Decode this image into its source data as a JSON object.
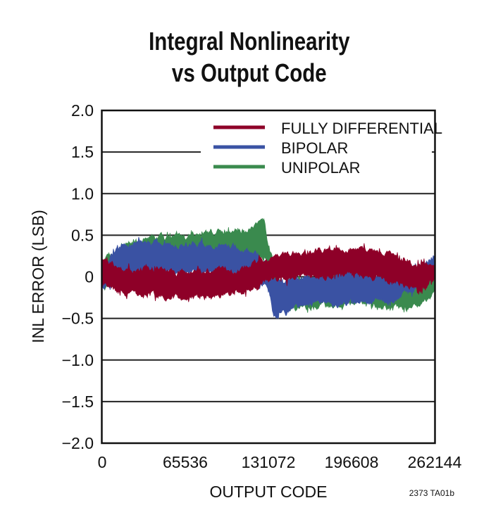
{
  "chart_data": {
    "type": "line",
    "title": [
      "Integral Nonlinearity",
      "vs Output Code"
    ],
    "xlabel": "OUTPUT CODE",
    "ylabel": "INL ERROR (LSB)",
    "xlim": [
      0,
      262144
    ],
    "ylim": [
      -2.0,
      2.0
    ],
    "xticks": [
      "0",
      "65536",
      "131072",
      "196608",
      "262144"
    ],
    "xtick_values": [
      0,
      65536,
      131072,
      196608,
      262144
    ],
    "yticks": [
      "2.0",
      "1.5",
      "1.0",
      "0.5",
      "0",
      "−0.5",
      "−1.0",
      "−1.5",
      "−2.0"
    ],
    "ytick_values": [
      2.0,
      1.5,
      1.0,
      0.5,
      0,
      -0.5,
      -1.0,
      -1.5,
      -2.0
    ],
    "grid": "horizontal",
    "legend_position": "top-right",
    "series": [
      {
        "name": "UNIPOLAR",
        "color": "#3a8a4e",
        "x": [
          0,
          15000,
          30000,
          65536,
          110000,
          128000,
          131072,
          140000,
          196608,
          220000,
          240000,
          262144
        ],
        "min": [
          -0.15,
          -0.05,
          0.1,
          0.15,
          0.2,
          0.25,
          0.15,
          -0.4,
          -0.3,
          -0.35,
          -0.4,
          -0.2
        ],
        "max": [
          0.15,
          0.35,
          0.45,
          0.5,
          0.55,
          0.65,
          0.35,
          -0.05,
          0.05,
          -0.1,
          -0.1,
          0.0
        ]
      },
      {
        "name": "BIPOLAR",
        "color": "#3a52a3",
        "x": [
          0,
          16000,
          65536,
          110000,
          125000,
          131072,
          135000,
          160000,
          196608,
          230000,
          255000,
          262144
        ],
        "min": [
          -0.15,
          0.05,
          0.05,
          0.05,
          -0.1,
          -0.1,
          -0.45,
          -0.35,
          -0.3,
          -0.3,
          -0.05,
          -0.05
        ],
        "max": [
          0.1,
          0.4,
          0.4,
          0.35,
          0.25,
          0.1,
          -0.05,
          0.0,
          0.05,
          0.0,
          0.2,
          0.25
        ]
      },
      {
        "name": "FULLY DIFFERENTIAL",
        "color": "#8e0028",
        "x": [
          0,
          16000,
          65536,
          110000,
          131072,
          160000,
          196608,
          230000,
          250000,
          262144
        ],
        "min": [
          -0.05,
          -0.2,
          -0.25,
          -0.2,
          -0.05,
          0.0,
          0.05,
          -0.05,
          -0.15,
          -0.05
        ],
        "max": [
          0.2,
          0.1,
          0.05,
          0.1,
          0.2,
          0.3,
          0.35,
          0.25,
          0.1,
          0.2
        ]
      }
    ],
    "legend_order": [
      "FULLY DIFFERENTIAL",
      "BIPOLAR",
      "UNIPOLAR"
    ]
  },
  "figure_id": "2373 TA01b"
}
